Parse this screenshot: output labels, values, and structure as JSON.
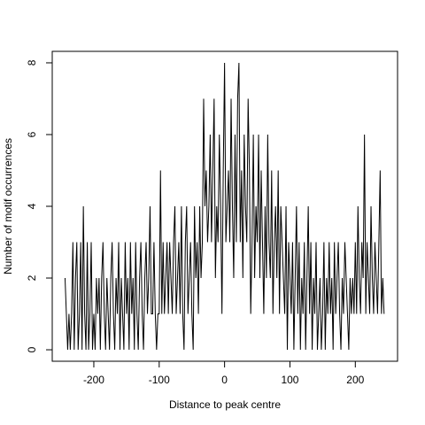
{
  "chart_data": {
    "type": "line",
    "x_label": "Distance to peak centre",
    "y_label": "Number of motif occurrences",
    "color": "#000000",
    "x": [
      -244,
      -242,
      -240,
      -238,
      -236,
      -234,
      -232,
      -230,
      -228,
      -226,
      -224,
      -222,
      -220,
      -218,
      -216,
      -214,
      -212,
      -210,
      -208,
      -206,
      -204,
      -202,
      -200,
      -198,
      -196,
      -194,
      -192,
      -190,
      -188,
      -186,
      -184,
      -182,
      -180,
      -178,
      -176,
      -174,
      -172,
      -170,
      -168,
      -166,
      -164,
      -162,
      -160,
      -158,
      -156,
      -154,
      -152,
      -150,
      -148,
      -146,
      -144,
      -142,
      -140,
      -138,
      -136,
      -134,
      -132,
      -130,
      -128,
      -126,
      -124,
      -122,
      -120,
      -118,
      -116,
      -114,
      -112,
      -110,
      -108,
      -106,
      -104,
      -102,
      -100,
      -98,
      -96,
      -94,
      -92,
      -90,
      -88,
      -86,
      -84,
      -82,
      -80,
      -78,
      -76,
      -74,
      -72,
      -70,
      -68,
      -66,
      -64,
      -62,
      -60,
      -58,
      -56,
      -54,
      -52,
      -50,
      -48,
      -46,
      -44,
      -42,
      -40,
      -38,
      -36,
      -34,
      -32,
      -30,
      -28,
      -26,
      -24,
      -22,
      -20,
      -18,
      -16,
      -14,
      -12,
      -10,
      -8,
      -6,
      -4,
      -2,
      0,
      2,
      4,
      6,
      8,
      10,
      12,
      14,
      16,
      18,
      20,
      22,
      24,
      26,
      28,
      30,
      32,
      34,
      36,
      38,
      40,
      42,
      44,
      46,
      48,
      50,
      52,
      54,
      56,
      58,
      60,
      62,
      64,
      66,
      68,
      70,
      72,
      74,
      76,
      78,
      80,
      82,
      84,
      86,
      88,
      90,
      92,
      94,
      96,
      98,
      100,
      102,
      104,
      106,
      108,
      110,
      112,
      114,
      116,
      118,
      120,
      122,
      124,
      126,
      128,
      130,
      132,
      134,
      136,
      138,
      140,
      142,
      144,
      146,
      148,
      150,
      152,
      154,
      156,
      158,
      160,
      162,
      164,
      166,
      168,
      170,
      172,
      174,
      176,
      178,
      180,
      182,
      184,
      186,
      188,
      190,
      192,
      194,
      196,
      198,
      200,
      202,
      204,
      206,
      208,
      210,
      212,
      214,
      216,
      218,
      220,
      222,
      224,
      226,
      228,
      230,
      232,
      234,
      236,
      238,
      240,
      242,
      244
    ],
    "values": [
      2,
      1,
      0,
      1,
      0,
      1,
      3,
      0,
      2,
      3,
      0,
      1,
      3,
      0,
      4,
      1,
      0,
      3,
      0,
      1,
      3,
      0,
      1,
      0,
      2,
      1,
      2,
      0,
      2,
      3,
      1,
      0,
      2,
      1,
      0,
      2,
      3,
      1,
      0,
      2,
      1,
      3,
      0,
      2,
      1,
      0,
      3,
      1,
      2,
      0,
      3,
      1,
      2,
      0,
      3,
      1,
      0,
      2,
      3,
      1,
      0,
      2,
      3,
      1,
      2,
      4,
      1,
      1,
      3,
      1,
      0,
      1,
      1,
      5,
      1,
      3,
      1,
      2,
      3,
      1,
      3,
      2,
      1,
      3,
      4,
      1,
      2,
      3,
      1,
      4,
      1,
      0,
      3,
      4,
      1,
      2,
      3,
      1,
      0,
      4,
      2,
      3,
      1,
      4,
      2,
      3,
      7,
      4,
      5,
      3,
      4,
      6,
      3,
      5,
      7,
      2,
      4,
      3,
      6,
      4,
      1,
      5,
      8,
      3,
      4,
      5,
      3,
      7,
      4,
      2,
      6,
      3,
      7,
      8,
      3,
      5,
      2,
      6,
      4,
      3,
      7,
      5,
      1,
      3,
      6,
      2,
      4,
      3,
      6,
      2,
      5,
      3,
      1,
      4,
      2,
      6,
      3,
      2,
      5,
      1,
      3,
      4,
      2,
      5,
      1,
      4,
      3,
      2,
      1,
      4,
      0,
      3,
      2,
      1,
      3,
      0,
      2,
      4,
      1,
      3,
      0,
      2,
      1,
      3,
      0,
      2,
      4,
      1,
      3,
      0,
      2,
      1,
      3,
      0,
      1,
      2,
      0,
      1,
      3,
      0,
      2,
      1,
      3,
      1,
      2,
      0,
      3,
      1,
      2,
      3,
      1,
      0,
      2,
      1,
      3,
      2,
      1,
      0,
      2,
      1,
      2,
      1,
      3,
      1,
      4,
      2,
      1,
      3,
      2,
      6,
      1,
      3,
      2,
      1,
      4,
      2,
      1,
      3,
      2,
      1,
      3,
      5,
      1,
      2,
      1
    ],
    "xlim": [
      -263.6,
      264.6
    ],
    "ylim": [
      -0.32,
      8.32
    ],
    "xticks": [
      -200,
      -100,
      0,
      100,
      200
    ],
    "yticks": [
      0,
      2,
      4,
      6,
      8
    ]
  }
}
